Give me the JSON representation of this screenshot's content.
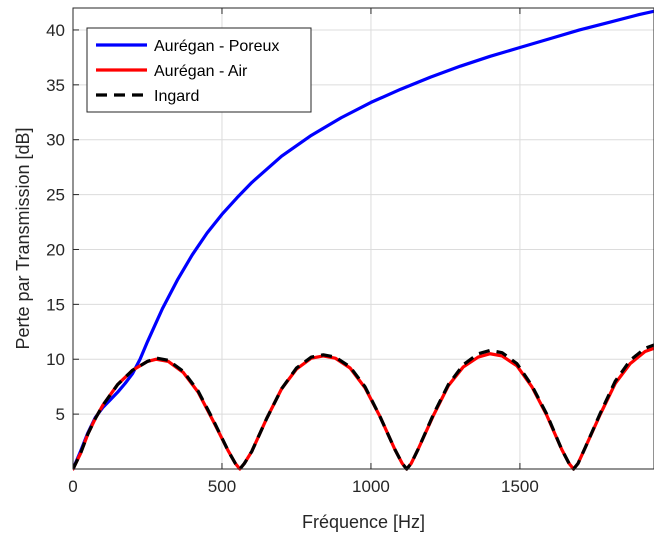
{
  "chart_data": {
    "type": "line",
    "title": "",
    "xlabel": "Fréquence [Hz]",
    "ylabel": "Perte par Transmission [dB]",
    "xlim": [
      0,
      1950
    ],
    "ylim": [
      0,
      42
    ],
    "xticks": [
      0,
      500,
      1000,
      1500
    ],
    "yticks": [
      5,
      10,
      15,
      20,
      25,
      30,
      35,
      40
    ],
    "xtick_labels": [
      "0",
      "500",
      "1000",
      "1500"
    ],
    "ytick_labels": [
      "5",
      "10",
      "15",
      "20",
      "25",
      "30",
      "35",
      "40"
    ],
    "grid": true,
    "legend_position": "top-left",
    "series": [
      {
        "name": "Aurégan - Poreux",
        "color": "#0000ff",
        "style": "solid",
        "x": [
          0,
          25,
          50,
          75,
          100,
          125,
          150,
          175,
          200,
          225,
          250,
          275,
          300,
          350,
          400,
          450,
          500,
          550,
          600,
          700,
          800,
          900,
          1000,
          1100,
          1200,
          1300,
          1400,
          1500,
          1600,
          1700,
          1800,
          1900,
          1950
        ],
        "y": [
          0,
          1.6,
          3.3,
          4.7,
          5.6,
          6.3,
          7.0,
          7.8,
          8.7,
          10.0,
          11.6,
          13.1,
          14.6,
          17.2,
          19.5,
          21.5,
          23.2,
          24.7,
          26.1,
          28.5,
          30.4,
          32.0,
          33.4,
          34.6,
          35.7,
          36.7,
          37.6,
          38.4,
          39.2,
          40.0,
          40.7,
          41.4,
          41.7
        ]
      },
      {
        "name": "Aurégan - Air",
        "color": "#ff0000",
        "style": "solid",
        "x": [
          0,
          25,
          50,
          75,
          100,
          150,
          200,
          250,
          280,
          320,
          370,
          420,
          470,
          520,
          545,
          560,
          575,
          600,
          650,
          700,
          750,
          800,
          840,
          880,
          930,
          980,
          1030,
          1080,
          1105,
          1120,
          1135,
          1160,
          1210,
          1260,
          1310,
          1360,
          1400,
          1440,
          1490,
          1540,
          1590,
          1640,
          1665,
          1680,
          1695,
          1720,
          1770,
          1820,
          1870,
          1920,
          1950
        ],
        "y": [
          0,
          1.4,
          3.2,
          4.6,
          5.8,
          7.7,
          9.0,
          9.8,
          10.0,
          9.8,
          8.8,
          7.0,
          4.4,
          1.7,
          0.5,
          0.0,
          0.5,
          1.6,
          4.6,
          7.3,
          9.1,
          10.1,
          10.3,
          10.1,
          9.2,
          7.4,
          4.8,
          1.8,
          0.5,
          0.0,
          0.5,
          1.9,
          4.9,
          7.6,
          9.3,
          10.2,
          10.5,
          10.3,
          9.4,
          7.5,
          4.9,
          1.8,
          0.5,
          0.0,
          0.5,
          2.0,
          5.0,
          7.8,
          9.6,
          10.7,
          11.0
        ]
      },
      {
        "name": "Ingard",
        "color": "#000000",
        "style": "dashed",
        "x": [
          0,
          25,
          50,
          75,
          100,
          150,
          200,
          250,
          280,
          320,
          370,
          420,
          470,
          520,
          545,
          560,
          575,
          600,
          650,
          700,
          750,
          800,
          840,
          880,
          930,
          980,
          1030,
          1080,
          1105,
          1120,
          1135,
          1160,
          1210,
          1260,
          1310,
          1360,
          1400,
          1440,
          1490,
          1540,
          1590,
          1640,
          1665,
          1680,
          1695,
          1720,
          1770,
          1820,
          1870,
          1920,
          1950
        ],
        "y": [
          0,
          1.4,
          3.2,
          4.6,
          5.8,
          7.7,
          9.0,
          9.8,
          10.1,
          9.9,
          8.9,
          7.1,
          4.5,
          1.7,
          0.5,
          0.0,
          0.5,
          1.6,
          4.6,
          7.3,
          9.2,
          10.2,
          10.4,
          10.2,
          9.3,
          7.5,
          4.8,
          1.8,
          0.5,
          0.0,
          0.5,
          1.9,
          5.0,
          7.7,
          9.5,
          10.5,
          10.8,
          10.6,
          9.6,
          7.6,
          5.0,
          1.8,
          0.5,
          0.0,
          0.5,
          2.0,
          5.1,
          8.0,
          9.9,
          11.0,
          11.3
        ]
      }
    ]
  }
}
